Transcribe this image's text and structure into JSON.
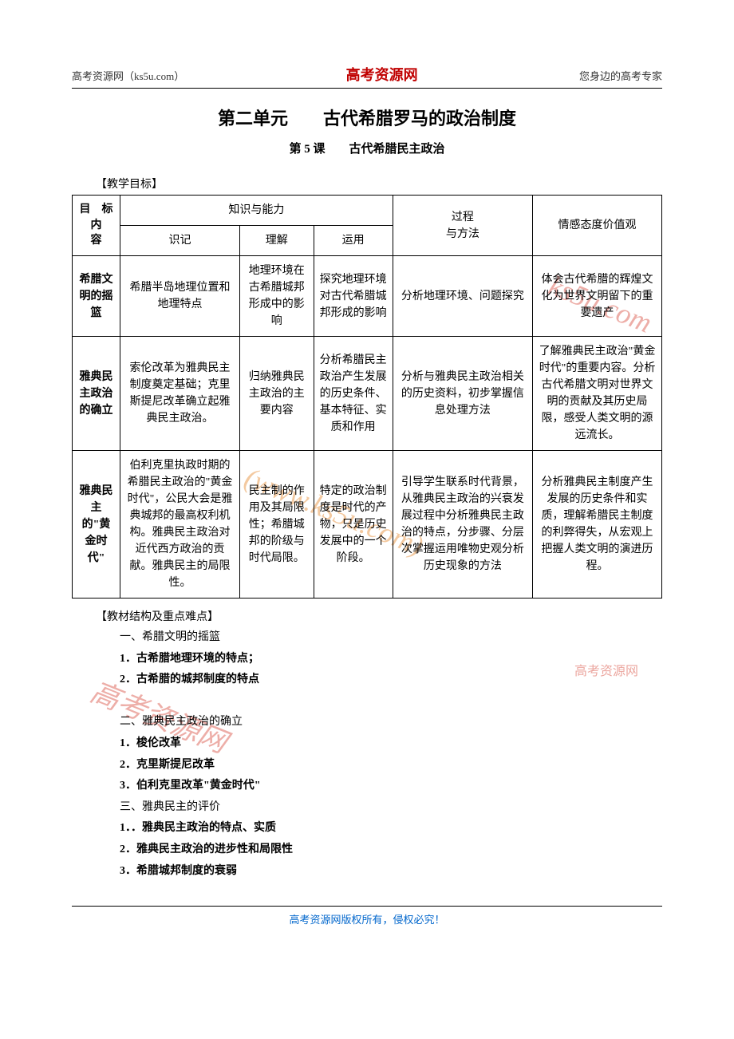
{
  "header": {
    "left": "高考资源网（ks5u.com）",
    "center": "高考资源网",
    "right": "您身边的高考专家"
  },
  "titles": {
    "unit": "第二单元　　古代希腊罗马的政治制度",
    "lesson": "第 5 课　　古代希腊民主政治",
    "teach_goal": "【教学目标】",
    "structure": "【教材结构及重点难点】"
  },
  "table": {
    "head": {
      "corner_line1": "目　标",
      "corner_line2": "内",
      "corner_line3": "容",
      "knowledge_ability": "知识与能力",
      "memorize": "识记",
      "understand": "理解",
      "apply": "运用",
      "process_method_l1": "过程",
      "process_method_l2": "与方法",
      "emotion": "情感态度价值观"
    },
    "rows": [
      {
        "name": "希腊文明的摇篮",
        "memorize": "希腊半岛地理位置和地理特点",
        "understand": "地理环境在古希腊城邦形成中的影响",
        "apply": "探究地理环境对古代希腊城邦形成的影响",
        "process": "分析地理环境、问题探究",
        "emotion": "体会古代希腊的辉煌文化为世界文明留下的重要遗产"
      },
      {
        "name": "雅典民主政治的确立",
        "memorize": "索伦改革为雅典民主制度奠定基础；克里斯提尼改革确立起雅典民主政治。",
        "understand": "归纳雅典民主政治的主要内容",
        "apply": "分析希腊民主政治产生发展的历史条件、基本特征、实质和作用",
        "process": "分析与雅典民主政治相关的历史资料，初步掌握信息处理方法",
        "emotion": "了解雅典民主政治\"黄金时代\"的重要内容。分析古代希腊文明对世界文明的贡献及其历史局限，感受人类文明的源远流长。"
      },
      {
        "name": "雅典民主的\"黄金时代\"",
        "memorize": "伯利克里执政时期的希腊民主政治的\"黄金时代\"，公民大会是雅典城邦的最高权利机构。雅典民主政治对近代西方政治的贡献。雅典民主的局限性。",
        "understand": "民主制的作用及其局限性；希腊城邦的阶级与时代局限。",
        "apply": "特定的政治制度是时代的产物，只是历史发展中的一个阶段。",
        "process": "引导学生联系时代背景，从雅典民主政治的兴衰发展过程中分析雅典民主政治的特点，分步骤、分层次掌握运用唯物史观分析历史现象的方法",
        "emotion": "分析雅典民主制度产生发展的历史条件和实质，理解希腊民主制度的利弊得失，从宏观上把握人类文明的演进历程。"
      }
    ]
  },
  "outline": {
    "sec1_title": "一、希腊文明的摇篮",
    "sec1_1": "1．古希腊地理环境的特点；",
    "sec1_2": "2．古希腊的城邦制度的特点",
    "sec2_title": "二、雅典民主政治的确立",
    "sec2_1": "1．梭伦改革",
    "sec2_2": "2．克里斯提尼改革",
    "sec2_3": "3．伯利克里改革\"黄金时代\"",
    "sec3_title": "三、雅典民主的评价",
    "sec3_1": "1．．雅典民主政治的特点、实质",
    "sec3_2": "2．雅典民主政治的进步性和局限性",
    "sec3_3": "3．希腊城邦制度的衰弱"
  },
  "footer": "高考资源网版权所有，侵权必究！",
  "watermark": {
    "text1": "ks5u.com",
    "text2": "(www.ks5u.com)",
    "text3": "高考资源网"
  },
  "colors": {
    "header_red": "#c00000",
    "footer_blue": "#0066cc",
    "wm_red": "#d94e3f",
    "wm_orange": "#e68a2e"
  }
}
